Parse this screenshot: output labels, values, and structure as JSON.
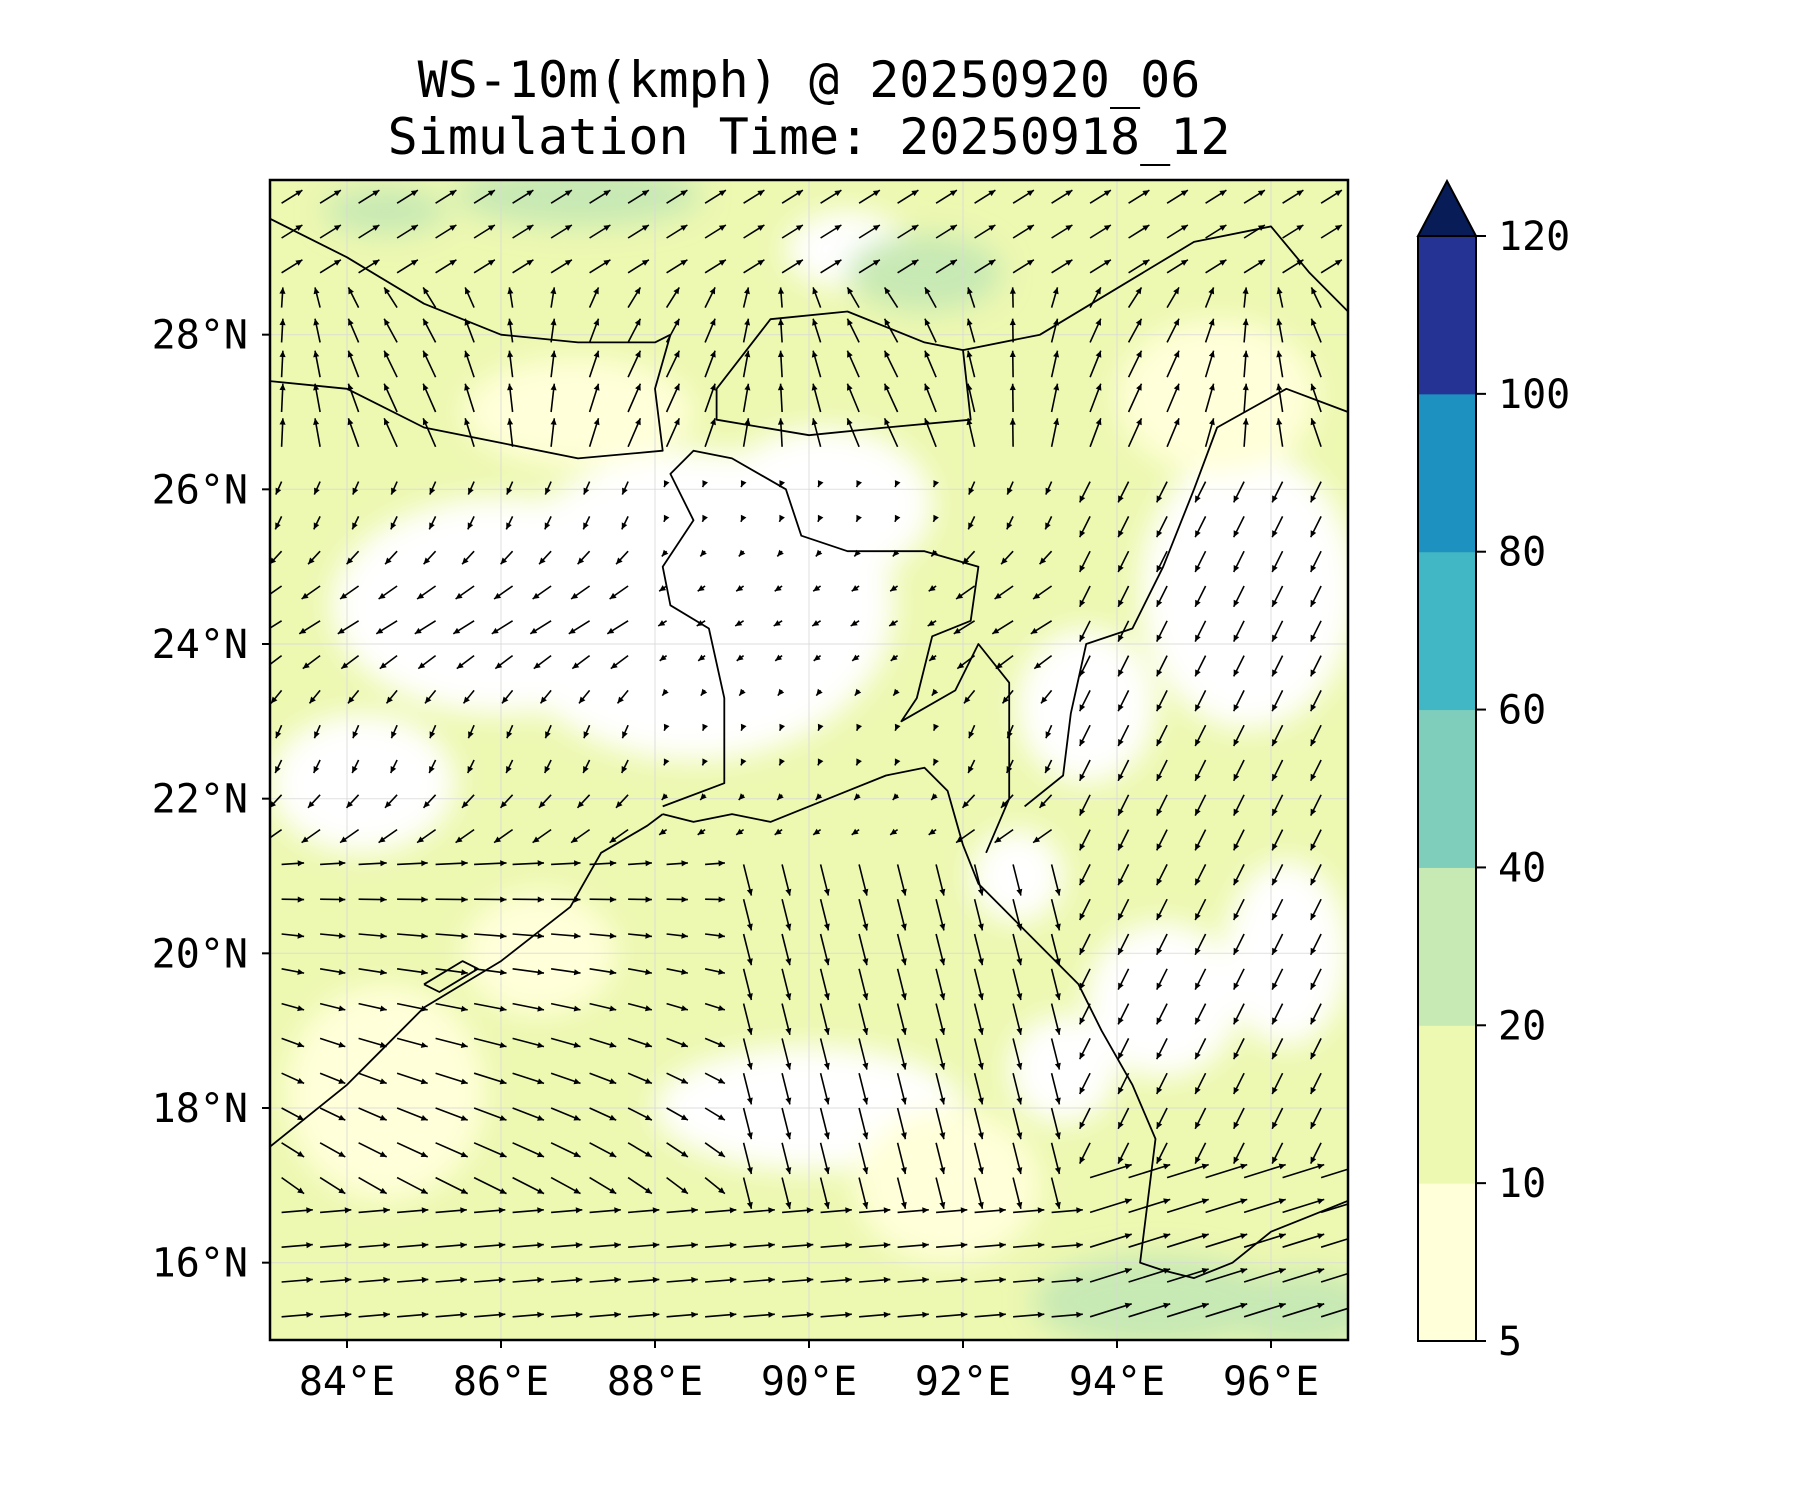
{
  "title_line1": "WS-10m(kmph) @ 20250920_06",
  "title_line2": "Simulation Time: 20250918_12",
  "map_extent": {
    "lon": [
      83.0,
      97.0
    ],
    "lat": [
      15.0,
      30.0
    ]
  },
  "lon_ticks": [
    {
      "value": 84,
      "label": "84°E"
    },
    {
      "value": 86,
      "label": "86°E"
    },
    {
      "value": 88,
      "label": "88°E"
    },
    {
      "value": 90,
      "label": "90°E"
    },
    {
      "value": 92,
      "label": "92°E"
    },
    {
      "value": 94,
      "label": "94°E"
    },
    {
      "value": 96,
      "label": "96°E"
    }
  ],
  "lat_ticks": [
    {
      "value": 28,
      "label": "28°N"
    },
    {
      "value": 26,
      "label": "26°N"
    },
    {
      "value": 24,
      "label": "24°N"
    },
    {
      "value": 22,
      "label": "22°N"
    },
    {
      "value": 20,
      "label": "20°N"
    },
    {
      "value": 18,
      "label": "18°N"
    },
    {
      "value": 16,
      "label": "16°N"
    }
  ],
  "colorbar": {
    "levels": [
      5,
      10,
      20,
      40,
      60,
      80,
      100,
      120
    ],
    "labels": [
      "5",
      "10",
      "20",
      "40",
      "60",
      "80",
      "100",
      "120"
    ],
    "colors": [
      "#ffffd9",
      "#edf8b1",
      "#c7e9b4",
      "#7fcdbb",
      "#41b6c4",
      "#1d91c0",
      "#253494"
    ],
    "extend_color": "#081d58",
    "extend": "max"
  },
  "colors": {
    "background_field": "#edf8b1",
    "calm_field": "#ffffff",
    "light_wind": "#ffffd9",
    "moderate_wind": "#c7e9b4",
    "coastline": "#000000",
    "arrows": "#000000",
    "gridline": "#d9d9d9"
  }
}
